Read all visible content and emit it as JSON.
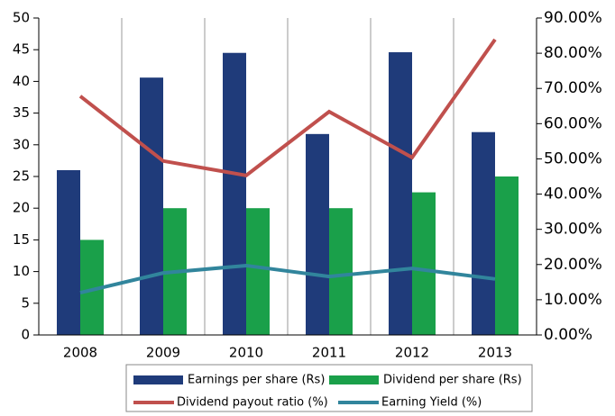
{
  "chart_data": {
    "type": "bar",
    "categories": [
      "2008",
      "2009",
      "2010",
      "2011",
      "2012",
      "2013"
    ],
    "series": [
      {
        "name": "Earnings per share (Rs)",
        "color": "#1f3b7a",
        "type": "bar",
        "values": [
          26.0,
          40.6,
          44.5,
          31.7,
          44.6,
          32.0
        ]
      },
      {
        "name": "Dividend per share (Rs)",
        "color": "#1aa04a",
        "type": "bar",
        "values": [
          15,
          20,
          20,
          20,
          22.5,
          25
        ]
      },
      {
        "name": "Dividend payout ratio (%)",
        "color": "#c0504d",
        "type": "line",
        "axis": "y2",
        "values": [
          67.8,
          49.4,
          45.3,
          63.4,
          50.4,
          83.9
        ]
      },
      {
        "name": "Earning Yield (%)",
        "color": "#31859c",
        "type": "line",
        "axis": "y2",
        "values": [
          12.0,
          17.6,
          19.7,
          16.6,
          18.9,
          15.9
        ]
      }
    ],
    "ylim": [
      0,
      50
    ],
    "yticks": [
      0,
      5,
      10,
      15,
      20,
      25,
      30,
      35,
      40,
      45,
      50
    ],
    "y2lim": [
      0,
      90
    ],
    "y2ticks": [
      {
        "value": 0,
        "label": "0.00%"
      },
      {
        "value": 10,
        "label": "10.00%"
      },
      {
        "value": 20,
        "label": "20.00%"
      },
      {
        "value": 30,
        "label": "30.00%"
      },
      {
        "value": 40,
        "label": "40.00%"
      },
      {
        "value": 50,
        "label": "50.00%"
      },
      {
        "value": 60,
        "label": "60.00%"
      },
      {
        "value": 70,
        "label": "70.00%"
      },
      {
        "value": 80,
        "label": "80.00%"
      },
      {
        "value": 90,
        "label": "90.00%"
      }
    ],
    "legend": "bottom"
  }
}
